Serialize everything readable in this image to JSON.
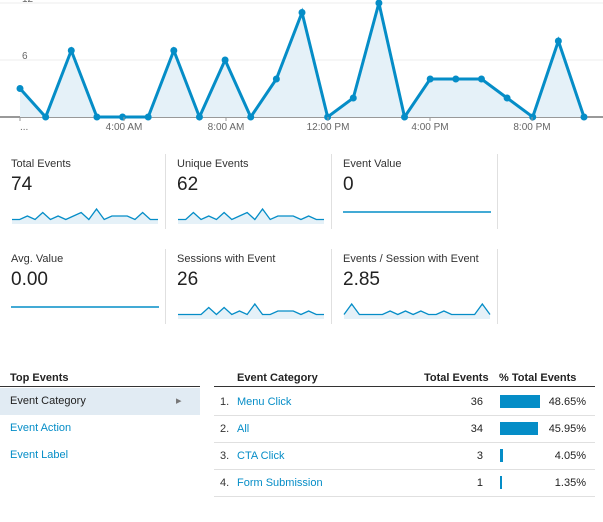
{
  "chart_data": {
    "type": "area",
    "y_ticks": [
      "12",
      "6"
    ],
    "ylim": [
      0,
      12
    ],
    "x_tick_labels": [
      "...",
      "4:00 AM",
      "8:00 AM",
      "12:00 PM",
      "4:00 PM",
      "8:00 PM"
    ],
    "values": [
      3,
      0,
      7,
      0,
      0,
      0,
      7,
      0,
      6,
      0,
      4,
      11,
      0,
      2,
      12,
      0,
      4,
      4,
      4,
      2,
      0,
      8,
      0
    ],
    "color": "#058dc7",
    "fill": "#e5f1f8"
  },
  "metrics": [
    {
      "label": "Total Events",
      "value": "74",
      "spark": [
        1,
        1,
        2,
        1,
        3,
        1,
        2,
        1,
        2,
        3,
        1,
        4,
        1,
        2,
        2,
        2,
        1,
        3,
        1,
        1
      ]
    },
    {
      "label": "Unique Events",
      "value": "62",
      "spark": [
        1,
        1,
        3,
        1,
        2,
        1,
        3,
        1,
        2,
        3,
        1,
        4,
        1,
        2,
        2,
        2,
        1,
        2,
        1,
        1
      ]
    },
    {
      "label": "Event Value",
      "value": "0",
      "spark": [
        0,
        0,
        0,
        0,
        0,
        0,
        0,
        0,
        0,
        0,
        0,
        0,
        0,
        0,
        0,
        0,
        0,
        0,
        0,
        0
      ]
    },
    {
      "label": "Avg. Value",
      "value": "0.00",
      "spark": [
        0,
        0,
        0,
        0,
        0,
        0,
        0,
        0,
        0,
        0,
        0,
        0,
        0,
        0,
        0,
        0,
        0,
        0,
        0,
        0
      ]
    },
    {
      "label": "Sessions with Event",
      "value": "26",
      "spark": [
        1,
        1,
        1,
        1,
        3,
        1,
        3,
        1,
        2,
        1,
        4,
        1,
        1,
        2,
        2,
        2,
        1,
        2,
        1,
        1
      ]
    },
    {
      "label": "Events / Session with Event",
      "value": "2.85",
      "spark": [
        1,
        4,
        1,
        1,
        1,
        1,
        2,
        1,
        2,
        1,
        2,
        1,
        1,
        2,
        1,
        1,
        1,
        1,
        4,
        1
      ]
    }
  ],
  "top_events": {
    "title": "Top Events",
    "side_items": [
      {
        "label": "Event Category",
        "selected": true
      },
      {
        "label": "Event Action",
        "selected": false
      },
      {
        "label": "Event Label",
        "selected": false
      }
    ],
    "arrow": "▸",
    "columns": {
      "category": "Event Category",
      "total": "Total Events",
      "pct": "% Total Events"
    },
    "rows": [
      {
        "num": "1.",
        "category": "Menu Click",
        "total": "36",
        "pct": "48.65%",
        "fraction": 0.4865
      },
      {
        "num": "2.",
        "category": "All",
        "total": "34",
        "pct": "45.95%",
        "fraction": 0.4595
      },
      {
        "num": "3.",
        "category": "CTA Click",
        "total": "3",
        "pct": "4.05%",
        "fraction": 0.0405
      },
      {
        "num": "4.",
        "category": "Form Submission",
        "total": "1",
        "pct": "1.35%",
        "fraction": 0.0135
      }
    ]
  }
}
